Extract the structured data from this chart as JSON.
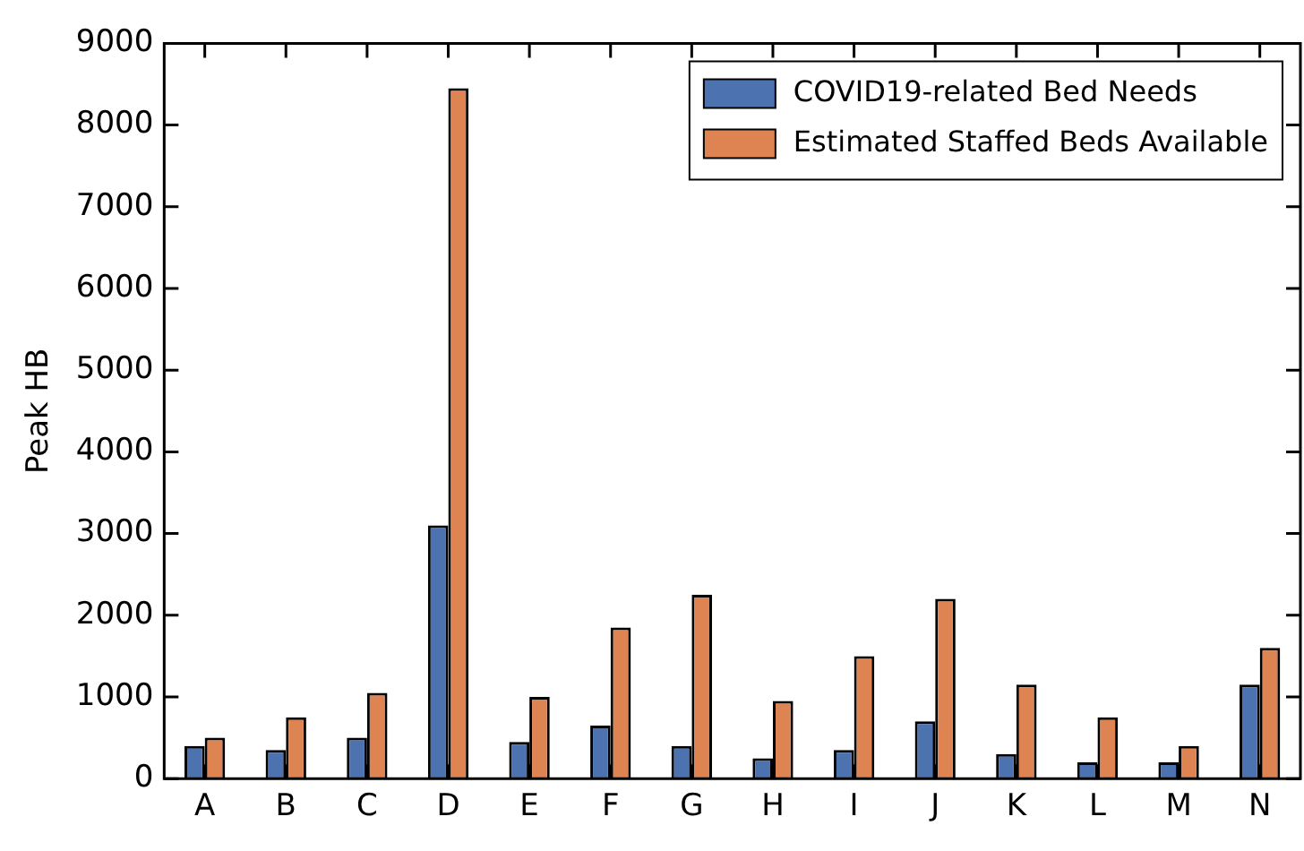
{
  "chart_data": {
    "type": "bar",
    "ylabel": "Peak HB",
    "categories": [
      "A",
      "B",
      "C",
      "D",
      "E",
      "F",
      "G",
      "H",
      "I",
      "J",
      "K",
      "L",
      "M",
      "N"
    ],
    "series": [
      {
        "name": "COVID19-related Bed Needs",
        "color": "#4c72b0",
        "values": [
          400,
          350,
          500,
          3100,
          450,
          650,
          400,
          250,
          350,
          700,
          300,
          200,
          200,
          1150
        ]
      },
      {
        "name": "Estimated Staffed Beds Available",
        "color": "#dd8452",
        "values": [
          500,
          750,
          1050,
          8450,
          1000,
          1850,
          2250,
          950,
          1500,
          2200,
          1150,
          750,
          400,
          1600
        ]
      }
    ],
    "ylim": [
      0,
      9000
    ],
    "yticks": [
      0,
      1000,
      2000,
      3000,
      4000,
      5000,
      6000,
      7000,
      8000,
      9000
    ],
    "grid": false,
    "legend": "top right"
  }
}
